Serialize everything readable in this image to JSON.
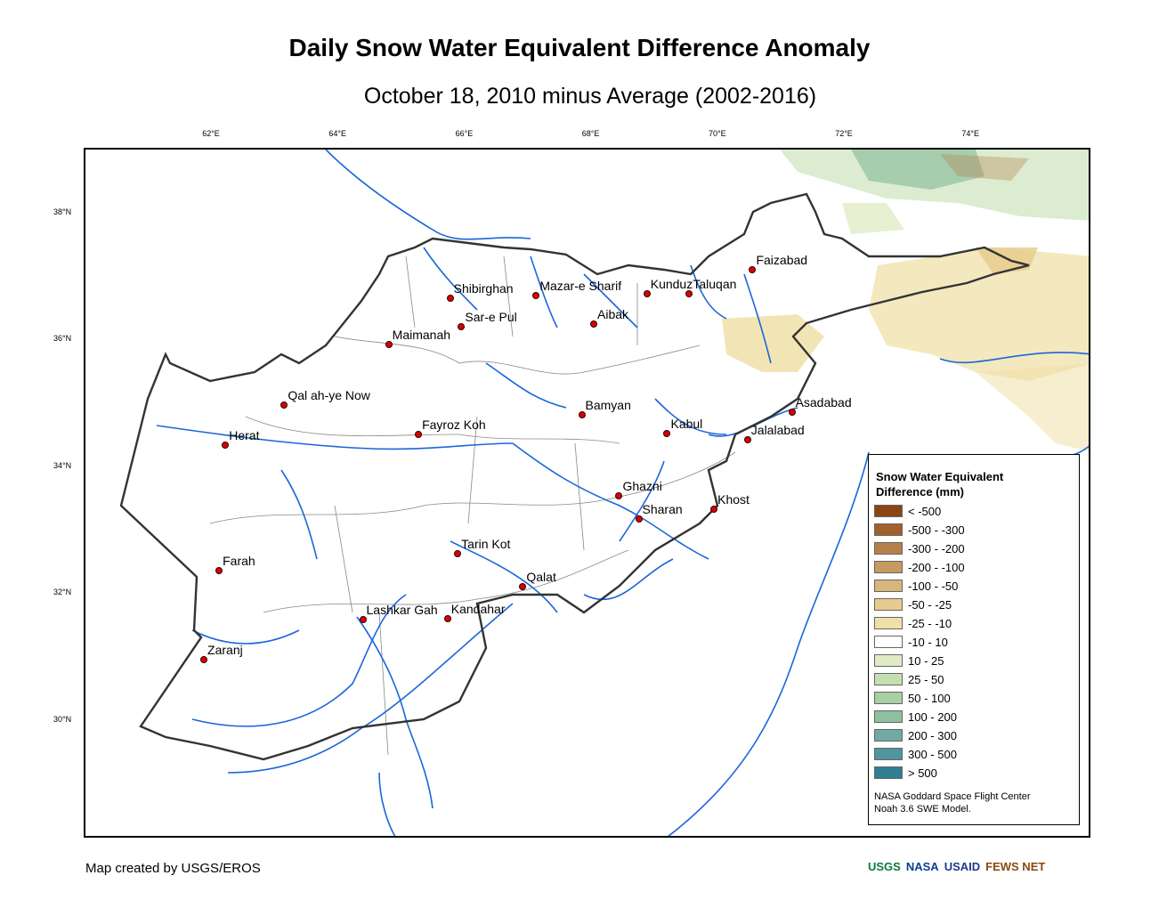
{
  "title": "Daily Snow Water Equivalent Difference Anomaly",
  "subtitle": "October 18, 2010 minus Average (2002-2016)",
  "longitude_ticks": [
    "62°E",
    "64°E",
    "66°E",
    "68°E",
    "70°E",
    "72°E",
    "74°E"
  ],
  "latitude_ticks": [
    "38°N",
    "36°N",
    "34°N",
    "32°N",
    "30°N"
  ],
  "cities": [
    {
      "name": "Faizabad",
      "lon": 70.53,
      "lat": 37.12
    },
    {
      "name": "Shibirghan",
      "lon": 65.75,
      "lat": 36.67
    },
    {
      "name": "Mazar-e Sharif",
      "lon": 67.11,
      "lat": 36.71
    },
    {
      "name": "Kunduz",
      "lon": 68.86,
      "lat": 36.73
    },
    {
      "name": "Taluqan",
      "lon": 69.53,
      "lat": 36.74
    },
    {
      "name": "Sar-e Pul",
      "lon": 65.93,
      "lat": 36.22
    },
    {
      "name": "Aibak",
      "lon": 68.02,
      "lat": 36.26
    },
    {
      "name": "Maimanah",
      "lon": 64.78,
      "lat": 35.93
    },
    {
      "name": "Qal ah-ye Now",
      "lon": 63.13,
      "lat": 34.98
    },
    {
      "name": "Bamyan",
      "lon": 67.83,
      "lat": 34.82
    },
    {
      "name": "Asadabad",
      "lon": 71.15,
      "lat": 34.87
    },
    {
      "name": "Fayroz Koh",
      "lon": 65.25,
      "lat": 34.52
    },
    {
      "name": "Kabul",
      "lon": 69.18,
      "lat": 34.53
    },
    {
      "name": "Jalalabad",
      "lon": 70.45,
      "lat": 34.43
    },
    {
      "name": "Herat",
      "lon": 62.2,
      "lat": 34.35
    },
    {
      "name": "Ghazni",
      "lon": 68.42,
      "lat": 33.55
    },
    {
      "name": "Khost",
      "lon": 69.92,
      "lat": 33.34
    },
    {
      "name": "Sharan",
      "lon": 68.73,
      "lat": 33.18
    },
    {
      "name": "Tarin Kot",
      "lon": 65.87,
      "lat": 32.63
    },
    {
      "name": "Farah",
      "lon": 62.1,
      "lat": 32.37
    },
    {
      "name": "Qalat",
      "lon": 66.9,
      "lat": 32.11
    },
    {
      "name": "Lashkar Gah",
      "lon": 64.37,
      "lat": 31.59
    },
    {
      "name": "Kandahar",
      "lon": 65.71,
      "lat": 31.61
    },
    {
      "name": "Zaranj",
      "lon": 61.86,
      "lat": 30.96
    }
  ],
  "legend": {
    "title": "Snow Water Equivalent Difference (mm)",
    "items": [
      {
        "label": "< -500",
        "color": "#8b4513"
      },
      {
        "label": "-500 - -300",
        "color": "#a0612c"
      },
      {
        "label": "-300 - -200",
        "color": "#b5804a"
      },
      {
        "label": "-200 - -100",
        "color": "#c79a5f"
      },
      {
        "label": "-100 - -50",
        "color": "#d8b57a"
      },
      {
        "label": "-50 - -25",
        "color": "#e6cb8c"
      },
      {
        "label": "-25 - -10",
        "color": "#f0e0a8"
      },
      {
        "label": "-10 - 10",
        "color": "#ffffff"
      },
      {
        "label": "10 - 25",
        "color": "#e0ebc4"
      },
      {
        "label": "25 - 50",
        "color": "#c5e0b0"
      },
      {
        "label": "50 - 100",
        "color": "#a8d0a5"
      },
      {
        "label": "100 - 200",
        "color": "#8ec0a0"
      },
      {
        "label": "200 - 300",
        "color": "#70aaa0"
      },
      {
        "label": "300 - 500",
        "color": "#4f969e"
      },
      {
        "label": "> 500",
        "color": "#2f7f90"
      }
    ],
    "credit_line1": "NASA Goddard Space Flight Center",
    "credit_line2": "Noah 3.6 SWE Model."
  },
  "footer_credit": "Map created by USGS/EROS",
  "logos": [
    "USGS",
    "NASA",
    "USAID",
    "FEWS NET"
  ],
  "colors": {
    "river": "#1a66d9",
    "border": "#333333",
    "province": "#888888",
    "city": "#d90000"
  }
}
